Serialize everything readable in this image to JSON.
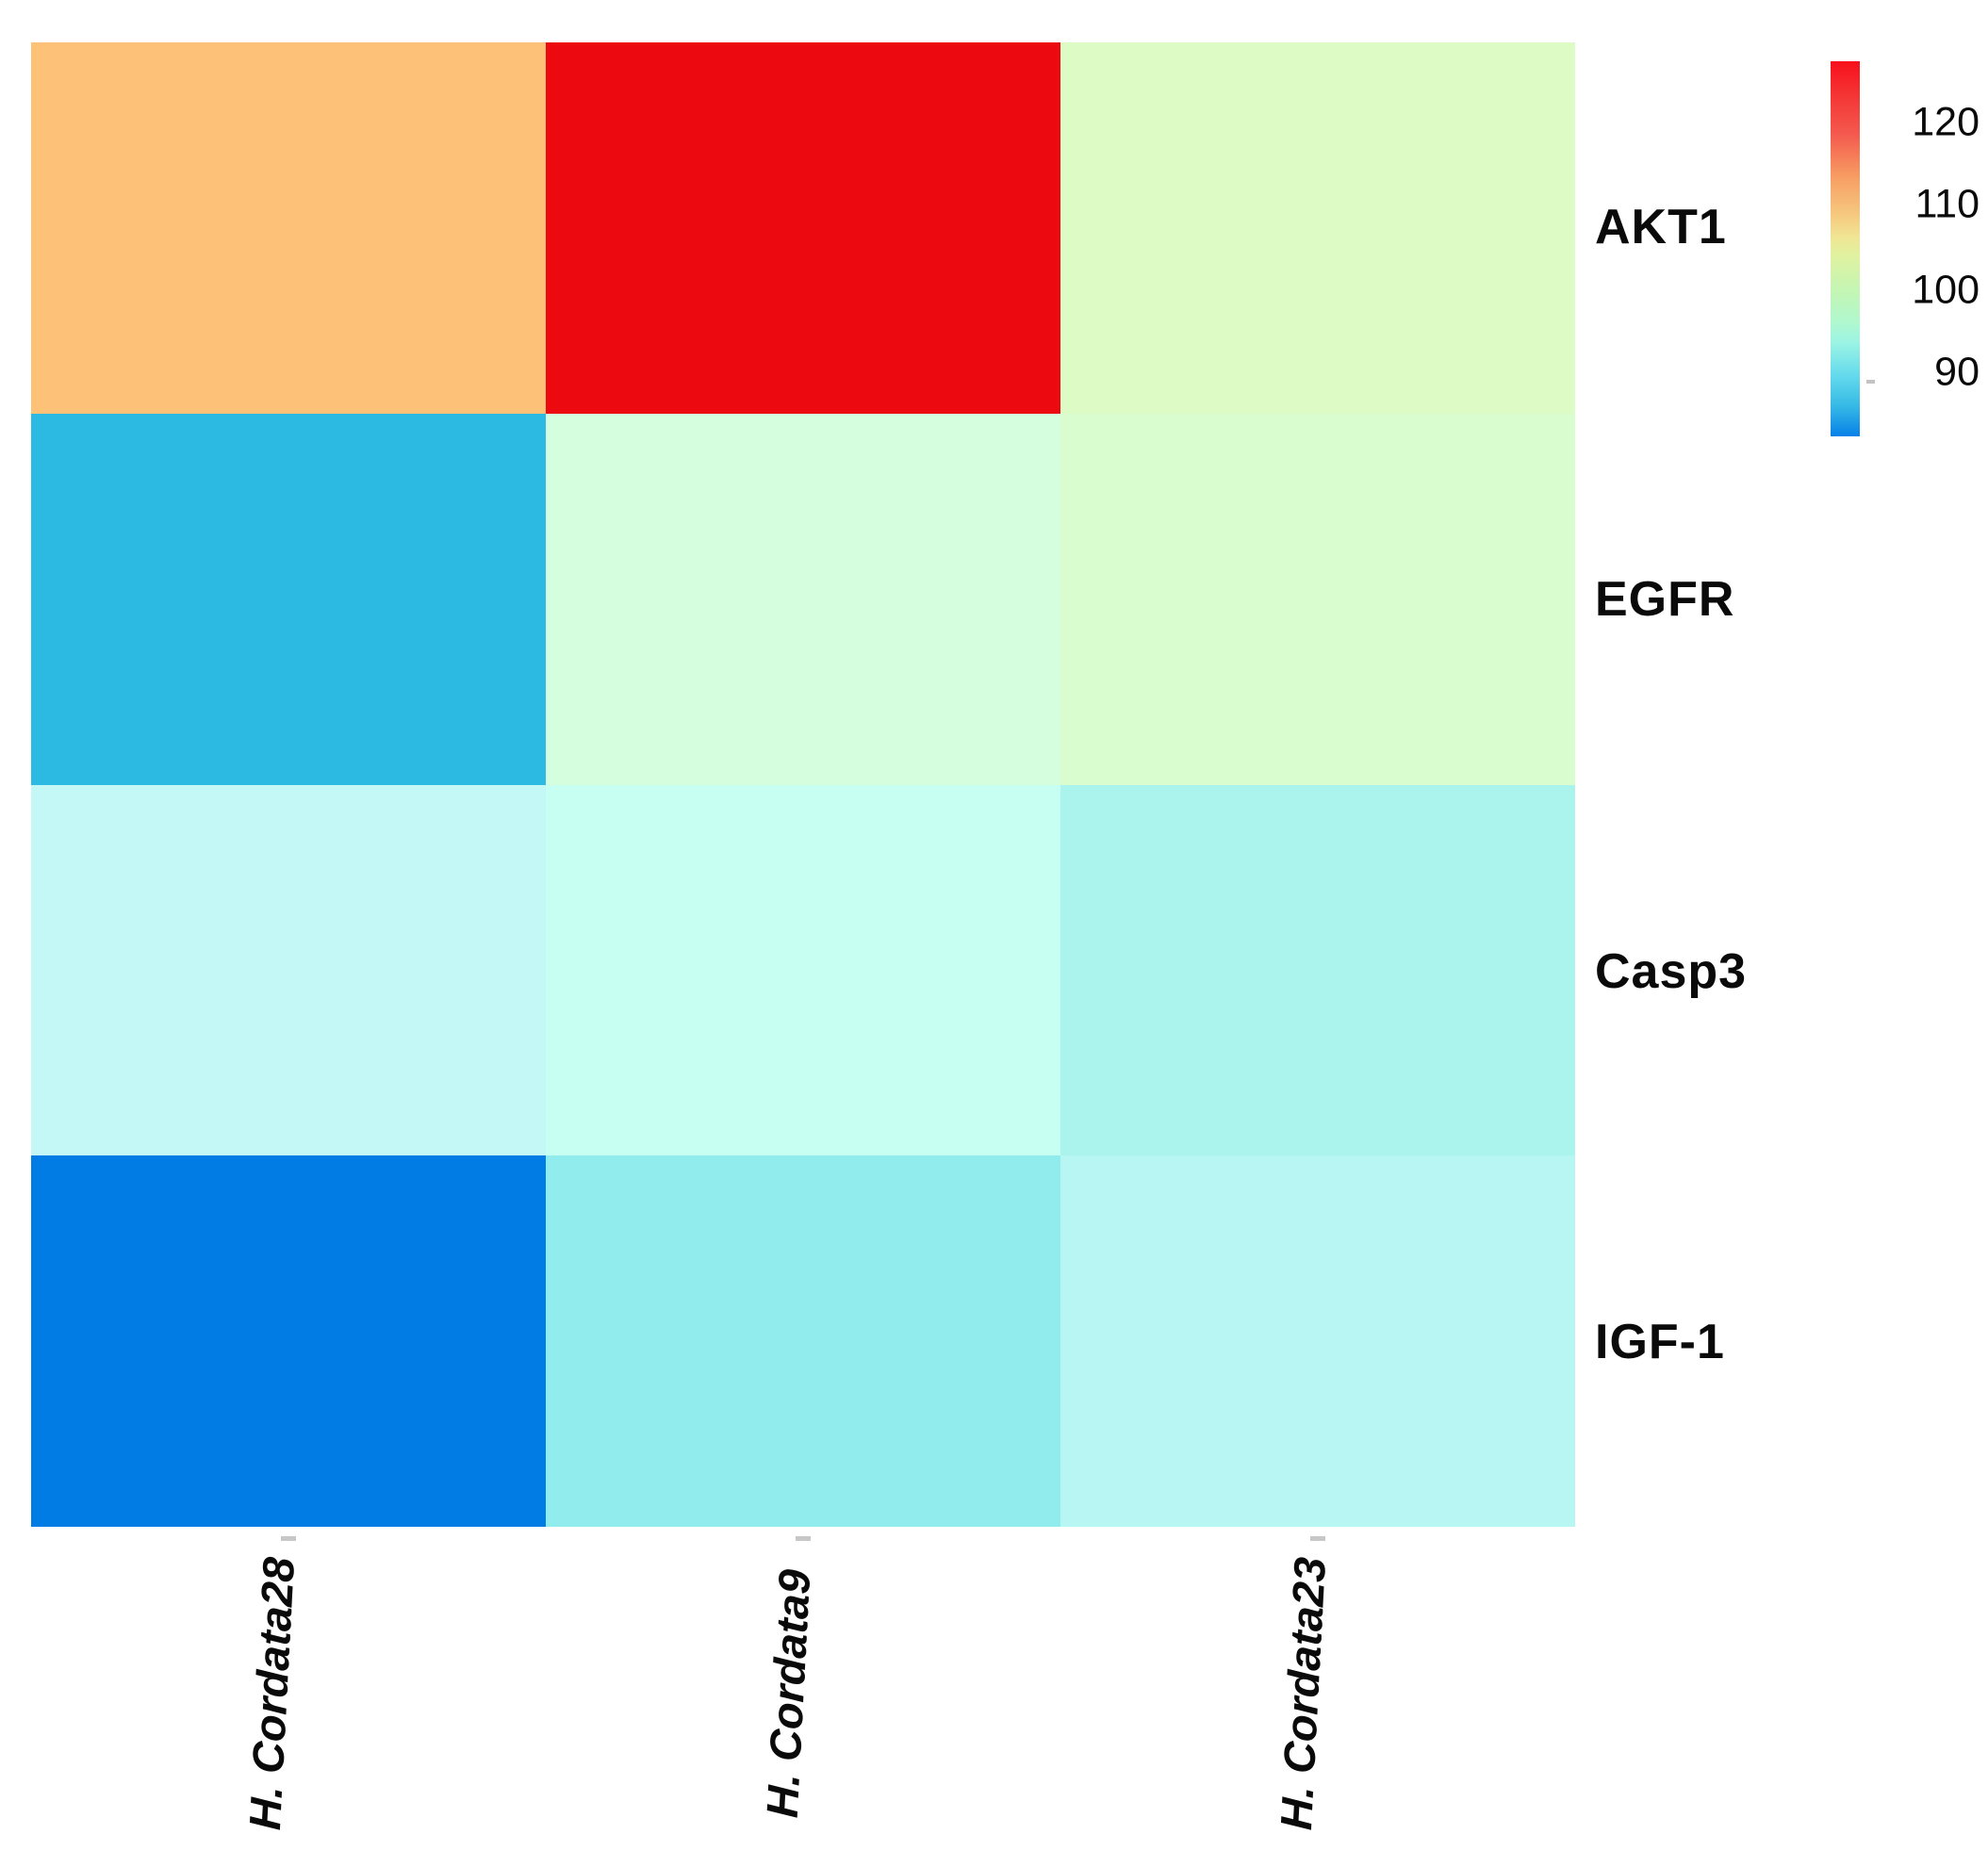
{
  "chart_data": {
    "type": "heatmap",
    "title": "",
    "rows": [
      "AKT1",
      "EGFR",
      "Casp3",
      "IGF-1"
    ],
    "columns": [
      "H. Cordata28",
      "H. Cordata9",
      "H. Cordata23"
    ],
    "values_note": "values estimated by matching cell colors to the colorbar scale",
    "values": [
      [
        112,
        126,
        103
      ],
      [
        87,
        99,
        101
      ],
      [
        95,
        96,
        93
      ],
      [
        83,
        91,
        94
      ]
    ],
    "cells": [
      {
        "row": "AKT1",
        "col": "H. Cordata28",
        "color": "#FDC278",
        "value": 112
      },
      {
        "row": "AKT1",
        "col": "H. Cordata9",
        "color": "#EC0910",
        "value": 126
      },
      {
        "row": "AKT1",
        "col": "H. Cordata23",
        "color": "#DCFBC5",
        "value": 103
      },
      {
        "row": "EGFR",
        "col": "H. Cordata28",
        "color": "#2DBAE2",
        "value": 87
      },
      {
        "row": "EGFR",
        "col": "H. Cordata9",
        "color": "#D5FEDE",
        "value": 99
      },
      {
        "row": "EGFR",
        "col": "H. Cordata23",
        "color": "#DAFDD0",
        "value": 101
      },
      {
        "row": "Casp3",
        "col": "H. Cordata28",
        "color": "#C3F8F7",
        "value": 95
      },
      {
        "row": "Casp3",
        "col": "H. Cordata9",
        "color": "#C7FFF2",
        "value": 96
      },
      {
        "row": "Casp3",
        "col": "H. Cordata23",
        "color": "#AAF4ED",
        "value": 93
      },
      {
        "row": "IGF-1",
        "col": "H. Cordata28",
        "color": "#027CE5",
        "value": 83
      },
      {
        "row": "IGF-1",
        "col": "H. Cordata9",
        "color": "#91ECEE",
        "value": 91
      },
      {
        "row": "IGF-1",
        "col": "H. Cordata23",
        "color": "#B7F6F2",
        "value": 94
      }
    ],
    "colorbar": {
      "ticks": [
        "120",
        "110",
        "100",
        "90"
      ],
      "min": 82,
      "max": 127,
      "legend_position": "top-right",
      "gradient_stops": [
        {
          "color": "#F7101B",
          "pos": 0
        },
        {
          "color": "#F4403C",
          "pos": 12
        },
        {
          "color": "#F4574D",
          "pos": 19
        },
        {
          "color": "#F79E63",
          "pos": 31
        },
        {
          "color": "#F6C97F",
          "pos": 41
        },
        {
          "color": "#F0E694",
          "pos": 47
        },
        {
          "color": "#DFF2A0",
          "pos": 52
        },
        {
          "color": "#C2F6B6",
          "pos": 62
        },
        {
          "color": "#AFF8D0",
          "pos": 70
        },
        {
          "color": "#9BF4E4",
          "pos": 75
        },
        {
          "color": "#63D9EC",
          "pos": 84
        },
        {
          "color": "#35B9E5",
          "pos": 92
        },
        {
          "color": "#0880E8",
          "pos": 100
        }
      ]
    }
  }
}
